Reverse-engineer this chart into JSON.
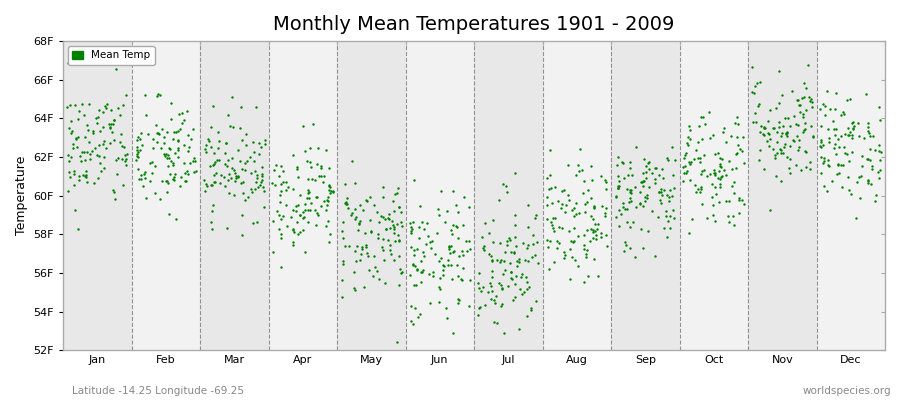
{
  "title": "Monthly Mean Temperatures 1901 - 2009",
  "ylabel": "Temperature",
  "xlabel_bottom_left": "Latitude -14.25 Longitude -69.25",
  "xlabel_bottom_right": "worldspecies.org",
  "ylim": [
    52,
    68
  ],
  "yticks": [
    52,
    54,
    56,
    58,
    60,
    62,
    64,
    66,
    68
  ],
  "ytick_labels": [
    "52F",
    "54F",
    "56F",
    "58F",
    "60F",
    "62F",
    "64F",
    "66F",
    "68F"
  ],
  "month_labels": [
    "Jan",
    "Feb",
    "Mar",
    "Apr",
    "May",
    "Jun",
    "Jul",
    "Aug",
    "Sep",
    "Oct",
    "Nov",
    "Dec"
  ],
  "dot_color": "#008000",
  "dot_size": 3,
  "background_color": "#ffffff",
  "band_colors": [
    "#e8e8e8",
    "#f2f2f2"
  ],
  "legend_label": "Mean Temp",
  "title_fontsize": 14,
  "axis_label_fontsize": 9,
  "tick_fontsize": 8,
  "seed": 42,
  "n_years": 109,
  "monthly_means": [
    62.5,
    62.0,
    61.5,
    60.0,
    58.0,
    56.5,
    56.5,
    58.5,
    60.0,
    61.5,
    63.5,
    62.5
  ],
  "monthly_stds": [
    1.6,
    1.5,
    1.3,
    1.4,
    1.6,
    1.8,
    1.9,
    1.5,
    1.4,
    1.6,
    1.5,
    1.4
  ]
}
